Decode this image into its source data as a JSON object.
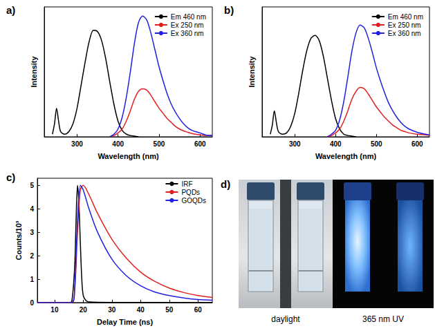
{
  "chart_data": [
    {
      "type": "line",
      "title": "a)",
      "x_label": "Wavelength (nm)",
      "y_label": "Intensity",
      "xlim": [
        220,
        630
      ],
      "xticks": [
        300,
        400,
        500,
        600
      ],
      "ylim": [
        0,
        1
      ],
      "yticks": [],
      "tick_labels": "x",
      "grid": false,
      "legend": "top-right",
      "series": [
        {
          "name": "Em 460 nm",
          "color": "#000000",
          "x": [
            240,
            245,
            250,
            255,
            260,
            270,
            280,
            290,
            300,
            310,
            320,
            330,
            340,
            350,
            360,
            370,
            380,
            390,
            400,
            410,
            420,
            430,
            440,
            450
          ],
          "values": [
            0.02,
            0.1,
            0.22,
            0.12,
            0.04,
            0.02,
            0.04,
            0.1,
            0.22,
            0.4,
            0.58,
            0.74,
            0.82,
            0.81,
            0.74,
            0.6,
            0.42,
            0.25,
            0.12,
            0.05,
            0.02,
            0.01,
            0.005,
            0
          ]
        },
        {
          "name": "Ex 250 nm",
          "color": "#e02020",
          "x": [
            380,
            390,
            400,
            410,
            420,
            430,
            440,
            450,
            460,
            470,
            480,
            490,
            500,
            510,
            520,
            530,
            540,
            550,
            560,
            570,
            580,
            600,
            620,
            630
          ],
          "values": [
            0,
            0.01,
            0.03,
            0.06,
            0.12,
            0.2,
            0.29,
            0.35,
            0.37,
            0.36,
            0.32,
            0.27,
            0.22,
            0.18,
            0.14,
            0.11,
            0.08,
            0.06,
            0.045,
            0.035,
            0.025,
            0.015,
            0.01,
            0.01
          ]
        },
        {
          "name": "Ex 360 nm",
          "color": "#2020e0",
          "x": [
            380,
            390,
            400,
            410,
            420,
            430,
            440,
            450,
            460,
            470,
            480,
            490,
            500,
            510,
            520,
            530,
            540,
            550,
            560,
            570,
            580,
            600,
            620,
            630
          ],
          "values": [
            0,
            0.02,
            0.06,
            0.15,
            0.3,
            0.5,
            0.72,
            0.88,
            0.93,
            0.9,
            0.8,
            0.67,
            0.54,
            0.43,
            0.33,
            0.25,
            0.19,
            0.14,
            0.1,
            0.07,
            0.05,
            0.03,
            0.01,
            0.01
          ]
        }
      ]
    },
    {
      "type": "line",
      "title": "b)",
      "x_label": "Wavelength (nm)",
      "y_label": "Intensity",
      "xlim": [
        220,
        630
      ],
      "xticks": [
        300,
        400,
        500,
        600
      ],
      "ylim": [
        0,
        1
      ],
      "yticks": [],
      "tick_labels": "x",
      "grid": false,
      "legend": "top-right",
      "series": [
        {
          "name": "Em 460 nm",
          "color": "#000000",
          "x": [
            240,
            245,
            250,
            255,
            260,
            270,
            280,
            290,
            300,
            310,
            320,
            330,
            340,
            350,
            360,
            370,
            380,
            390,
            400,
            410,
            420,
            430,
            440,
            450
          ],
          "values": [
            0.02,
            0.09,
            0.2,
            0.11,
            0.04,
            0.02,
            0.03,
            0.08,
            0.18,
            0.34,
            0.52,
            0.67,
            0.76,
            0.78,
            0.74,
            0.62,
            0.45,
            0.28,
            0.14,
            0.06,
            0.02,
            0.01,
            0.005,
            0
          ]
        },
        {
          "name": "Ex 250 nm",
          "color": "#e02020",
          "x": [
            380,
            390,
            400,
            410,
            420,
            430,
            440,
            450,
            460,
            470,
            480,
            490,
            500,
            510,
            520,
            530,
            540,
            550,
            560,
            570,
            580,
            600,
            620,
            630
          ],
          "values": [
            0,
            0.01,
            0.03,
            0.06,
            0.12,
            0.2,
            0.29,
            0.35,
            0.38,
            0.37,
            0.33,
            0.28,
            0.23,
            0.19,
            0.15,
            0.12,
            0.09,
            0.07,
            0.05,
            0.04,
            0.03,
            0.02,
            0.015,
            0.01
          ]
        },
        {
          "name": "Ex 360 nm",
          "color": "#2020e0",
          "x": [
            380,
            390,
            400,
            410,
            420,
            430,
            440,
            450,
            460,
            470,
            480,
            490,
            500,
            510,
            520,
            530,
            540,
            550,
            560,
            570,
            580,
            600,
            620,
            630
          ],
          "values": [
            0,
            0.02,
            0.05,
            0.13,
            0.27,
            0.46,
            0.66,
            0.8,
            0.86,
            0.84,
            0.76,
            0.65,
            0.53,
            0.43,
            0.34,
            0.26,
            0.2,
            0.15,
            0.11,
            0.08,
            0.06,
            0.035,
            0.02,
            0.015
          ]
        }
      ]
    },
    {
      "type": "line",
      "title": "c)",
      "x_label": "Delay Time (ns)",
      "y_label": "Counts/10³",
      "xlim": [
        4,
        65
      ],
      "xticks": [
        10,
        20,
        30,
        40,
        50,
        60
      ],
      "ylim": [
        0,
        5.3
      ],
      "yticks": [
        0,
        1,
        2,
        3,
        4,
        5
      ],
      "grid": false,
      "legend": "top-right",
      "series": [
        {
          "name": "IRF",
          "color": "#000000",
          "x": [
            4,
            15,
            16,
            17,
            17.5,
            18,
            18.5,
            19,
            19.5,
            20,
            21,
            22,
            30,
            65
          ],
          "values": [
            0,
            0,
            0.05,
            1.5,
            3.5,
            5,
            4.2,
            2.5,
            1,
            0.3,
            0.08,
            0.03,
            0.01,
            0
          ]
        },
        {
          "name": "PQDs",
          "color": "#e02020",
          "x": [
            4,
            16,
            17,
            18,
            19,
            20,
            22,
            25,
            30,
            35,
            40,
            45,
            50,
            55,
            60,
            65
          ],
          "values": [
            0,
            0,
            0.5,
            3,
            4.8,
            5,
            4.6,
            3.8,
            2.7,
            1.9,
            1.3,
            0.9,
            0.62,
            0.43,
            0.3,
            0.22
          ]
        },
        {
          "name": "GOQDs",
          "color": "#2020e0",
          "x": [
            4,
            16,
            17,
            18,
            19,
            20,
            22,
            25,
            30,
            35,
            40,
            45,
            50,
            55,
            60,
            65
          ],
          "values": [
            0,
            0,
            0.6,
            3.5,
            5,
            4.8,
            4,
            3,
            1.85,
            1.15,
            0.72,
            0.45,
            0.3,
            0.2,
            0.13,
            0.1
          ]
        }
      ]
    }
  ],
  "photo": {
    "label": "d)",
    "captions": [
      "daylight",
      "365 nm UV"
    ]
  }
}
